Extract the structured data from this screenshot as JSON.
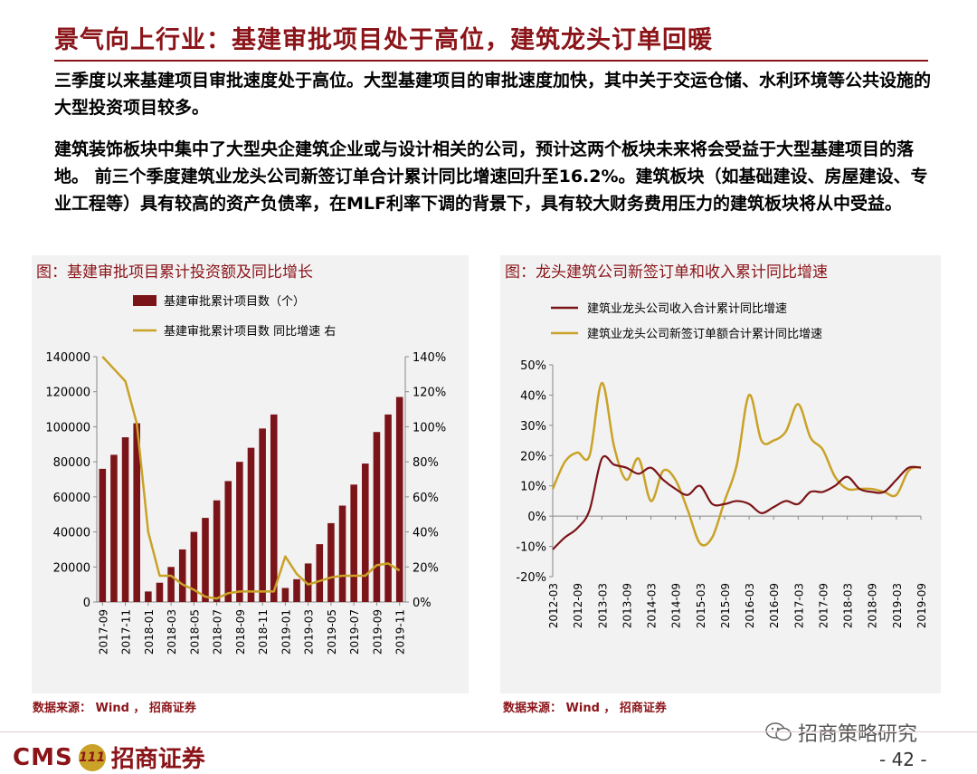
{
  "header": {
    "title": "景气向上行业：基建审批项目处于高位，建筑龙头订单回暖",
    "para1": "三季度以来基建项目审批速度处于高位。大型基建项目的审批速度加快，其中关于交运仓储、水利环境等公共设施的大型投资项目较多。",
    "para2": "建筑装饰板块中集中了大型央企建筑企业或与设计相关的公司，预计这两个板块未来将会受益于大型基建项目的落地。 前三个季度建筑业龙头公司新签订单合计累计同比增速回升至16.2%。建筑板块（如基础建设、房屋建设、专业工程等）具有较高的资产负债率，在MLF利率下调的背景下，具有较大财务费用压力的建筑板块将从中受益。"
  },
  "left_panel": {
    "title": "图：基建审批项目累计投资额及同比增长",
    "source": "数据来源： Wind ， 招商证券"
  },
  "right_panel": {
    "title": "图：龙头建筑公司新签订单和收入累计同比增速",
    "source": "数据来源： Wind ， 招商证券"
  },
  "footer": {
    "brand_cms": "CMS",
    "brand_badge": "111",
    "brand_name": "招商证券",
    "wechat_text": "招商策略研究",
    "page_number": "- 42 -"
  },
  "colors": {
    "brand": "#8b1419",
    "bar": "#7b1418",
    "line_gold": "#c9a227",
    "line_dark": "#7b1418",
    "panel_bg": "#f2f2f2"
  },
  "chart_data": [
    {
      "type": "bar",
      "categories": [
        "2017-09",
        "2017-10",
        "2017-11",
        "2017-12",
        "2018-01",
        "2018-02",
        "2018-03",
        "2018-04",
        "2018-05",
        "2018-06",
        "2018-07",
        "2018-08",
        "2018-09",
        "2018-10",
        "2018-11",
        "2018-12",
        "2019-01",
        "2019-02",
        "2019-03",
        "2019-04",
        "2019-05",
        "2019-06",
        "2019-07",
        "2019-08",
        "2019-09",
        "2019-10",
        "2019-11"
      ],
      "tick_labels": [
        "2017-09",
        "2017-11",
        "2018-01",
        "2018-03",
        "2018-05",
        "2018-07",
        "2018-09",
        "2018-11",
        "2019-01",
        "2019-03",
        "2019-05",
        "2019-07",
        "2019-09",
        "2019-11"
      ],
      "series": [
        {
          "name": "基建审批累计项目数（个）",
          "type": "bar",
          "axis": "left",
          "values": [
            76000,
            84000,
            94000,
            102000,
            6000,
            11000,
            20000,
            30000,
            40000,
            48000,
            58000,
            69000,
            80000,
            88000,
            99000,
            107000,
            8000,
            13000,
            22000,
            33000,
            45000,
            55000,
            67000,
            79000,
            97000,
            107000,
            117000
          ]
        },
        {
          "name": "基建审批累计项目数 同比增速 右",
          "type": "line",
          "axis": "right",
          "values": [
            140,
            133,
            126,
            102,
            40,
            15,
            15,
            10,
            7,
            3,
            2,
            5,
            6,
            6,
            6,
            6,
            26,
            16,
            10,
            12,
            14,
            15,
            15,
            15,
            21,
            22,
            18
          ]
        }
      ],
      "left_axis": {
        "ylim": [
          0,
          140000
        ],
        "ticks": [
          "0",
          "20000",
          "40000",
          "60000",
          "80000",
          "100000",
          "120000",
          "140000"
        ]
      },
      "right_axis": {
        "ylim": [
          0,
          140
        ],
        "ticks": [
          "0%",
          "20%",
          "40%",
          "60%",
          "80%",
          "100%",
          "120%",
          "140%"
        ]
      },
      "grid": false,
      "legend": "top-left"
    },
    {
      "type": "line",
      "categories": [
        "2012-03",
        "2012-06",
        "2012-09",
        "2012-12",
        "2013-03",
        "2013-06",
        "2013-09",
        "2013-12",
        "2014-03",
        "2014-06",
        "2014-09",
        "2014-12",
        "2015-03",
        "2015-06",
        "2015-09",
        "2015-12",
        "2016-03",
        "2016-06",
        "2016-09",
        "2016-12",
        "2017-03",
        "2017-06",
        "2017-09",
        "2017-12",
        "2018-03",
        "2018-06",
        "2018-09",
        "2018-12",
        "2019-03",
        "2019-06",
        "2019-09"
      ],
      "tick_labels": [
        "2012-03",
        "2012-09",
        "2013-03",
        "2013-09",
        "2014-03",
        "2014-09",
        "2015-03",
        "2015-09",
        "2016-03",
        "2016-09",
        "2017-03",
        "2017-09",
        "2018-03",
        "2018-09",
        "2019-03",
        "2019-09"
      ],
      "series": [
        {
          "name": "建筑业龙头公司收入合计累计同比增速",
          "color_key": "line_dark",
          "values": [
            -11,
            -7,
            -4,
            2,
            19,
            17,
            16,
            14,
            16,
            12,
            9,
            7,
            10,
            4,
            4,
            5,
            4,
            1,
            3,
            5,
            4,
            8,
            8,
            10,
            13,
            9,
            8,
            8,
            12,
            16,
            16
          ]
        },
        {
          "name": "建筑业龙头公司新签订单额合计累计同比增速",
          "color_key": "line_gold",
          "values": [
            9,
            18,
            21,
            20,
            44,
            23,
            12,
            19,
            5,
            15,
            12,
            2,
            -9,
            -7,
            5,
            17,
            40,
            25,
            25,
            28,
            37,
            26,
            22,
            13,
            9,
            9,
            9,
            8,
            7,
            15,
            16.2
          ]
        }
      ],
      "ylim": [
        -20,
        50
      ],
      "ticks": [
        "-20%",
        "-10%",
        "0%",
        "10%",
        "20%",
        "30%",
        "40%",
        "50%"
      ],
      "grid": false,
      "legend": "top-left"
    }
  ]
}
